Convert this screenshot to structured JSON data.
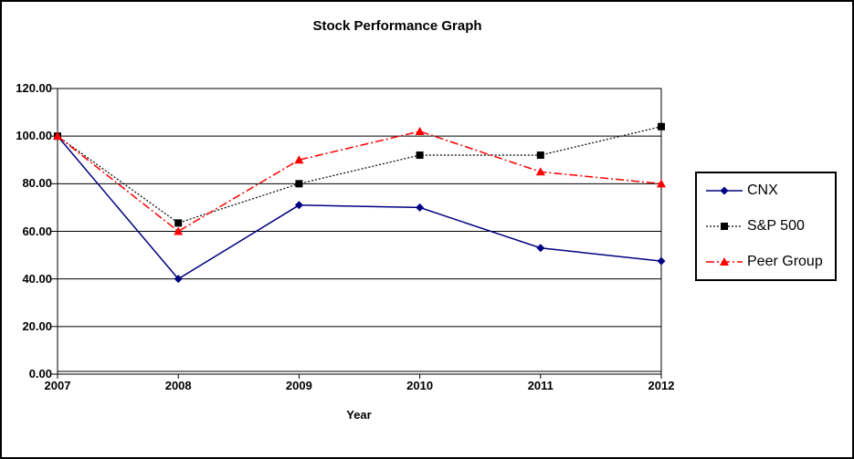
{
  "chart_data": {
    "type": "line",
    "title": "Stock Performance Graph",
    "xlabel": "Year",
    "ylabel": "",
    "x_categories": [
      "2007",
      "2008",
      "2009",
      "2010",
      "2011",
      "2012"
    ],
    "ylim": [
      0,
      120
    ],
    "ytick_step": 20,
    "ytick_labels": [
      "0.00",
      "20.00",
      "40.00",
      "60.00",
      "80.00",
      "100.00",
      "120.00"
    ],
    "grid": "horizontal",
    "legend_position": "right",
    "series": [
      {
        "name": "CNX",
        "color": "#000080",
        "marker": "diamond",
        "line_style": "solid",
        "values": [
          100,
          40,
          71,
          70,
          53,
          47.5
        ]
      },
      {
        "name": "S&P 500",
        "color": "#000000",
        "marker": "square",
        "line_style": "dotted",
        "values": [
          100,
          63.5,
          80,
          92,
          92,
          104
        ]
      },
      {
        "name": "Peer Group",
        "color": "#ff0000",
        "marker": "triangle",
        "line_style": "dashdot",
        "values": [
          100,
          60,
          90,
          102,
          85,
          80
        ]
      }
    ]
  }
}
